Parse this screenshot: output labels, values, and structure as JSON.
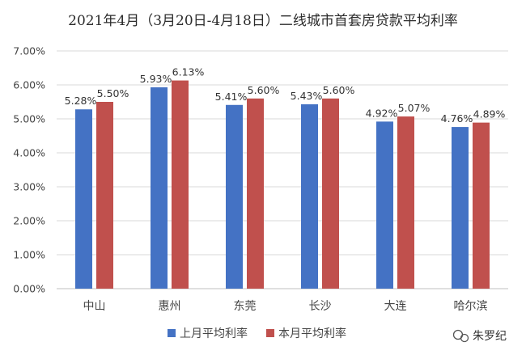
{
  "chart_data": {
    "type": "bar",
    "title": "2021年4月（3月20日-4月18日）二线城市首套房贷款平均利率",
    "categories": [
      "中山",
      "惠州",
      "东莞",
      "长沙",
      "大连",
      "哈尔滨"
    ],
    "series": [
      {
        "name": "上月平均利率",
        "color": "#4472c4",
        "values": [
          5.28,
          5.93,
          5.41,
          5.43,
          4.92,
          4.76
        ],
        "labels": [
          "5.28%",
          "5.93%",
          "5.41%",
          "5.43%",
          "4.92%",
          "4.76%"
        ]
      },
      {
        "name": "本月平均利率",
        "color": "#c0504d",
        "values": [
          5.5,
          6.13,
          5.6,
          5.6,
          5.07,
          4.89
        ],
        "labels": [
          "5.50%",
          "6.13%",
          "5.60%",
          "5.60%",
          "5.07%",
          "4.89%"
        ]
      }
    ],
    "ylim": [
      0,
      7
    ],
    "yticks": [
      0,
      1,
      2,
      3,
      4,
      5,
      6,
      7
    ],
    "ytick_labels": [
      "0.00%",
      "1.00%",
      "2.00%",
      "3.00%",
      "4.00%",
      "5.00%",
      "6.00%",
      "7.00%"
    ],
    "xlabel": "",
    "ylabel": "",
    "grid": true,
    "legend_position": "bottom"
  },
  "watermark": {
    "text": "朱罗纪",
    "icon": "wechat-icon"
  }
}
